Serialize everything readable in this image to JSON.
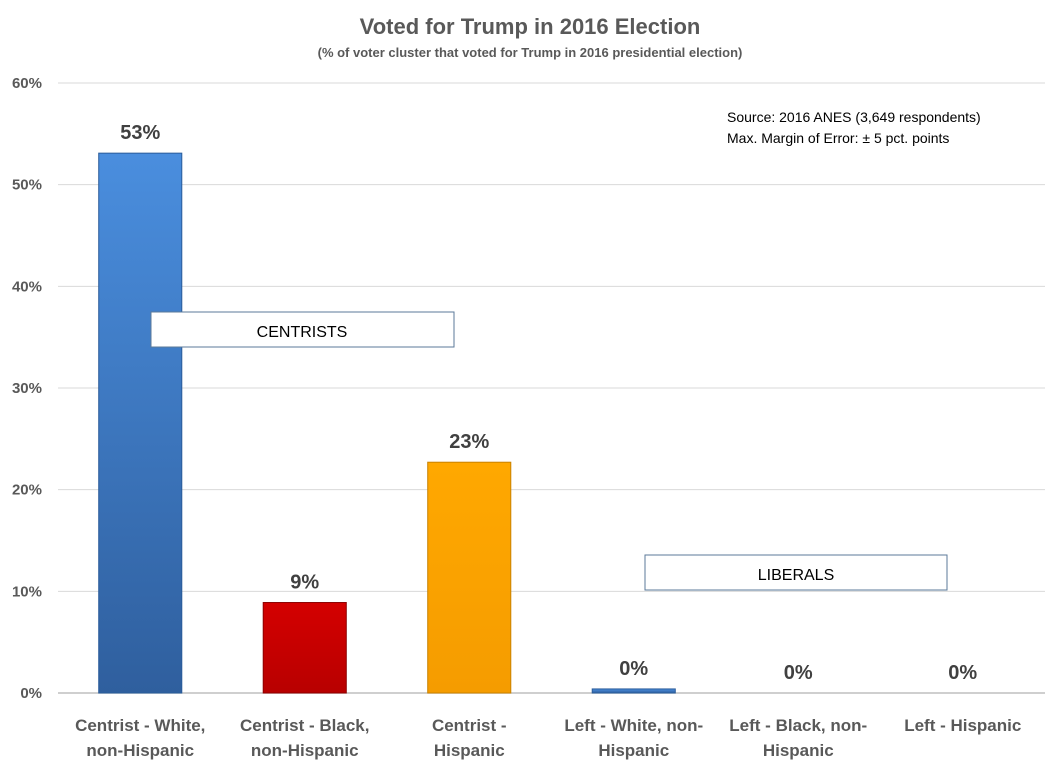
{
  "chart_data": {
    "type": "bar",
    "title": "Voted for Trump in 2016 Election",
    "subtitle": "(% of voter cluster that voted for Trump in 2016 presidential election)",
    "xlabel": "",
    "ylabel": "",
    "ylim": [
      0,
      60
    ],
    "yticks": [
      0,
      10,
      20,
      30,
      40,
      50,
      60
    ],
    "ytick_labels": [
      "0%",
      "10%",
      "20%",
      "30%",
      "40%",
      "50%",
      "60%"
    ],
    "grid": true,
    "categories": [
      [
        "Centrist - White,",
        "non-Hispanic"
      ],
      [
        "Centrist - Black,",
        "non-Hispanic"
      ],
      [
        "Centrist  -",
        "Hispanic"
      ],
      [
        "Left - White, non-",
        "Hispanic"
      ],
      [
        "Left - Black, non-",
        "Hispanic"
      ],
      [
        "Left - Hispanic"
      ]
    ],
    "values": [
      53.1,
      8.9,
      22.7,
      0.4,
      0,
      0
    ],
    "data_labels": [
      "53%",
      "9%",
      "23%",
      "0%",
      "0%",
      "0%"
    ],
    "colors": [
      "#3a78c9",
      "#cc0000",
      "#ffa500",
      "#3a78c9",
      "#3a78c9",
      "#3a78c9"
    ],
    "annotations": {
      "source": "Source: 2016 ANES (3,649 respondents)",
      "margin": "Max. Margin of Error: ± 5 pct. points",
      "group_centrists": "CENTRISTS",
      "group_liberals": "LIBERALS"
    }
  }
}
